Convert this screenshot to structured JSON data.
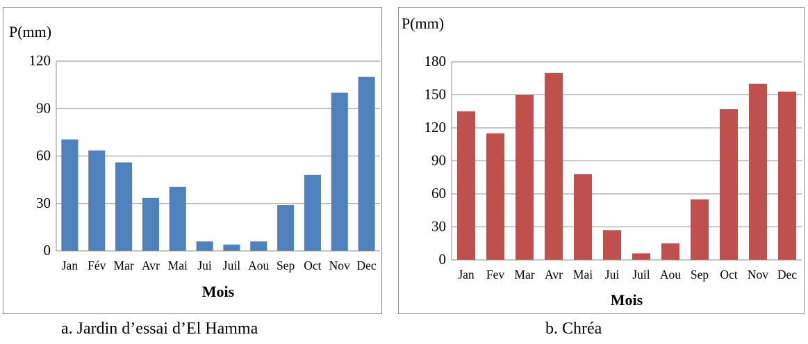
{
  "chart_data": [
    {
      "type": "bar",
      "ylabel": "P(mm)",
      "xlabel": "Mois",
      "categories": [
        "Jan",
        "Fév",
        "Mar",
        "Avr",
        "Mai",
        "Jui",
        "Juil",
        "Aou",
        "Sep",
        "Oct",
        "Nov",
        "Dec"
      ],
      "values": [
        70.5,
        63.5,
        56,
        33.5,
        40.5,
        6,
        4,
        6,
        29,
        48,
        100,
        110
      ],
      "ylim": [
        0,
        120
      ],
      "yticks": [
        "0",
        "30",
        "60",
        "90",
        "120"
      ],
      "grid": true,
      "color": "#4f81bd",
      "caption": "a. Jardin d’essai d’El Hamma"
    },
    {
      "type": "bar",
      "ylabel": "P(mm)",
      "xlabel": "Mois",
      "categories": [
        "Jan",
        "Fev",
        "Mar",
        "Avr",
        "Mai",
        "Jui",
        "Juil",
        "Aou",
        "Sep",
        "Oct",
        "Nov",
        "Dec"
      ],
      "values": [
        135,
        115,
        150,
        170,
        78,
        27,
        6,
        15,
        55,
        137,
        160,
        153
      ],
      "ylim": [
        0,
        180
      ],
      "yticks": [
        "0",
        "30",
        "60",
        "90",
        "120",
        "150",
        "180"
      ],
      "grid": true,
      "color": "#c0504d",
      "caption": "b. Chréa"
    }
  ]
}
